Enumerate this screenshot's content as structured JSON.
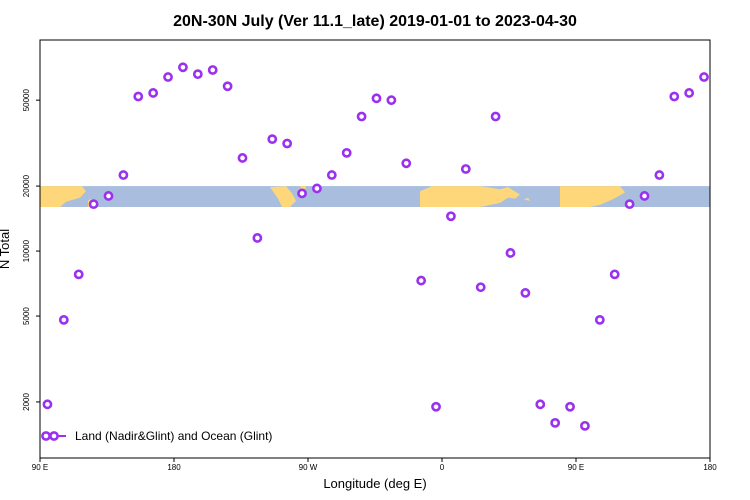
{
  "chart_data": {
    "type": "scatter",
    "title": "20N-30N July (Ver 11.1_late)   2019-01-01 to 2023-04-30",
    "xlabel": "Longitude (deg E)",
    "ylabel": "N Total",
    "y_scale": "log",
    "xlim": [
      90,
      540
    ],
    "ylim": [
      1100,
      95000
    ],
    "x_ticks": [
      {
        "value": 90,
        "label": "90 E"
      },
      {
        "value": 180,
        "label": "180"
      },
      {
        "value": 270,
        "label": "90 W"
      },
      {
        "value": 360,
        "label": "0"
      },
      {
        "value": 450,
        "label": "90 E"
      },
      {
        "value": 540,
        "label": "180"
      }
    ],
    "y_ticks": [
      {
        "value": 2000,
        "label": "2000"
      },
      {
        "value": 5000,
        "label": "5000"
      },
      {
        "value": 10000,
        "label": "10000"
      },
      {
        "value": 20000,
        "label": "20000"
      },
      {
        "value": 50000,
        "label": "50000"
      }
    ],
    "map_band": {
      "ymin": 16000,
      "ymax": 20000,
      "ocean_color": "#a9bedf",
      "land_color": "#fdd77a"
    },
    "legend": {
      "position": "bottom-left",
      "label": "Land (Nadir&Glint) and Ocean (Glint)"
    },
    "series": [
      {
        "name": "Land (Nadir&Glint) and Ocean (Glint)",
        "color": "#9b30ef",
        "marker": "open-circle",
        "x": [
          95,
          106,
          116,
          126,
          136,
          146,
          156,
          166,
          176,
          186,
          196,
          206,
          216,
          226,
          236,
          246,
          256,
          266,
          276,
          286,
          296,
          306,
          316,
          326,
          336,
          346,
          356,
          366,
          376,
          386,
          396,
          406,
          416,
          426,
          436,
          446,
          456,
          466,
          476,
          486,
          496,
          506,
          516,
          526,
          536
        ],
        "y": [
          1950,
          4800,
          7800,
          16500,
          18000,
          22500,
          52000,
          54000,
          64000,
          71000,
          66000,
          69000,
          58000,
          27000,
          11500,
          33000,
          31500,
          18500,
          19500,
          22500,
          28500,
          42000,
          51000,
          50000,
          25500,
          7300,
          1900,
          14500,
          24000,
          6800,
          42000,
          9800,
          6400,
          1950,
          1600,
          1900,
          1550,
          4800,
          7800,
          16500,
          18000,
          22500,
          52000,
          54000,
          64000
        ]
      }
    ]
  }
}
